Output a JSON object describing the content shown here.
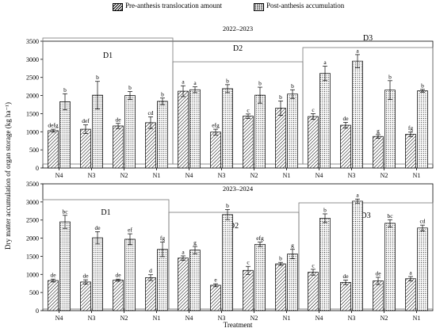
{
  "legend": {
    "pre": "Pre-anthesis translocation amount",
    "post": "Post-anthesis accumulation"
  },
  "ylabel": "Dry matter accumulation of organ storage  (kg ha⁻¹)",
  "xlabel": "Treatment",
  "chart_data": [
    {
      "type": "bar",
      "title": "2022–2023",
      "ylim": [
        0,
        3500
      ],
      "yticks": [
        0,
        500,
        1000,
        1500,
        2000,
        2500,
        3000,
        3500
      ],
      "categories": [
        "N4",
        "N3",
        "N2",
        "N1",
        "N4",
        "N3",
        "N2",
        "N1",
        "N4",
        "N3",
        "N2",
        "N1"
      ],
      "groups": [
        "D1",
        "D2",
        "D3"
      ],
      "grid": false,
      "legend_position": "top",
      "series": [
        {
          "name": "Pre-anthesis translocation amount",
          "pattern": "hatch",
          "values": [
            1030,
            1070,
            1160,
            1250,
            2120,
            990,
            1430,
            1650,
            1420,
            1180,
            870,
            930
          ],
          "errors": [
            40,
            120,
            70,
            160,
            150,
            80,
            60,
            200,
            80,
            80,
            50,
            60
          ],
          "labels": [
            "defg",
            "def",
            "de",
            "cd",
            "a",
            "efg",
            "c",
            "b",
            "c",
            "de",
            "g",
            "fg"
          ]
        },
        {
          "name": "Post-anthesis accumulation",
          "pattern": "dots",
          "values": [
            1830,
            2010,
            2000,
            1840,
            2160,
            2190,
            2010,
            2040,
            2610,
            2950,
            2150,
            2130
          ],
          "errors": [
            220,
            380,
            110,
            90,
            80,
            110,
            220,
            120,
            200,
            180,
            260,
            40
          ],
          "labels": [
            "b",
            "b",
            "b",
            "b",
            "a",
            "b",
            "b",
            "b",
            "a",
            "a",
            "b",
            "b"
          ]
        }
      ]
    },
    {
      "type": "bar",
      "title": "2023–2024",
      "ylim": [
        0,
        3500
      ],
      "yticks": [
        0,
        500,
        1000,
        1500,
        2000,
        2500,
        3000,
        3500
      ],
      "categories": [
        "N4",
        "N3",
        "N2",
        "N1",
        "N4",
        "N3",
        "N2",
        "N1",
        "N4",
        "N3",
        "N2",
        "N1"
      ],
      "groups": [
        "D1",
        "D2",
        "D3"
      ],
      "grid": false,
      "series": [
        {
          "name": "Pre-anthesis translocation amount",
          "pattern": "hatch",
          "values": [
            830,
            790,
            840,
            910,
            1450,
            700,
            1110,
            1290,
            1060,
            780,
            820,
            880
          ],
          "errors": [
            40,
            60,
            30,
            80,
            60,
            40,
            110,
            40,
            80,
            60,
            100,
            60
          ],
          "labels": [
            "de",
            "de",
            "de",
            "d",
            "a",
            "e",
            "c",
            "b",
            "c",
            "de",
            "de",
            "a"
          ]
        },
        {
          "name": "Post-anthesis accumulation",
          "pattern": "dots",
          "values": [
            2450,
            2010,
            1970,
            1690,
            1670,
            2650,
            1830,
            1560,
            2550,
            3020,
            2410,
            2280
          ],
          "errors": [
            180,
            170,
            150,
            200,
            100,
            140,
            60,
            130,
            120,
            60,
            100,
            80
          ],
          "labels": [
            "bc",
            "de",
            "ef",
            "fg",
            "g",
            "b",
            "efg",
            "g",
            "b",
            "a",
            "bc",
            "cd"
          ]
        }
      ]
    }
  ]
}
